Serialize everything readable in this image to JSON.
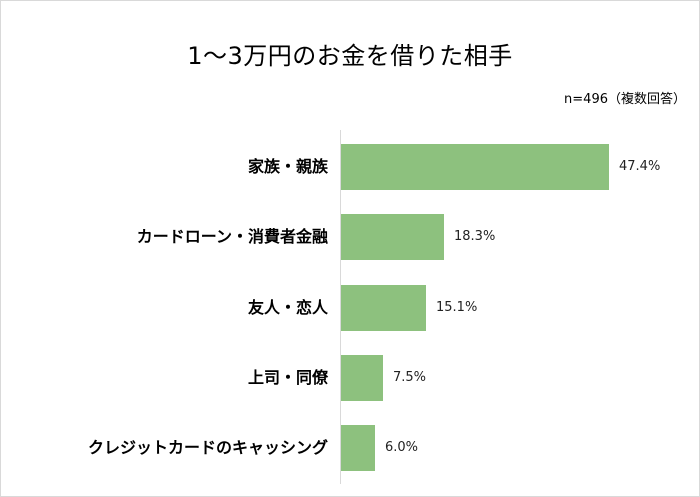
{
  "chart": {
    "title": "1～3万円のお金を借りた相手",
    "note": "n=496（複数回答）",
    "bar_color": "#8DC17E",
    "axis_color": "#d9d9d9"
  },
  "rows": [
    {
      "label": "家族・親族",
      "value_label": "47.4%"
    },
    {
      "label": "カードローン・消費者金融",
      "value_label": "18.3%"
    },
    {
      "label": "友人・恋人",
      "value_label": "15.1%"
    },
    {
      "label": "上司・同僚",
      "value_label": "7.5%"
    },
    {
      "label": "クレジットカードのキャッシング",
      "value_label": "6.0%"
    }
  ],
  "chart_data": {
    "type": "bar",
    "orientation": "horizontal",
    "title": "1～3万円のお金を借りた相手",
    "subtitle": "n=496（複数回答）",
    "categories": [
      "家族・親族",
      "カードローン・消費者金融",
      "友人・恋人",
      "上司・同僚",
      "クレジットカードのキャッシング"
    ],
    "values": [
      47.4,
      18.3,
      15.1,
      7.5,
      6.0
    ],
    "unit": "%",
    "xlabel": "",
    "ylabel": "",
    "grid": false,
    "legend": null
  }
}
